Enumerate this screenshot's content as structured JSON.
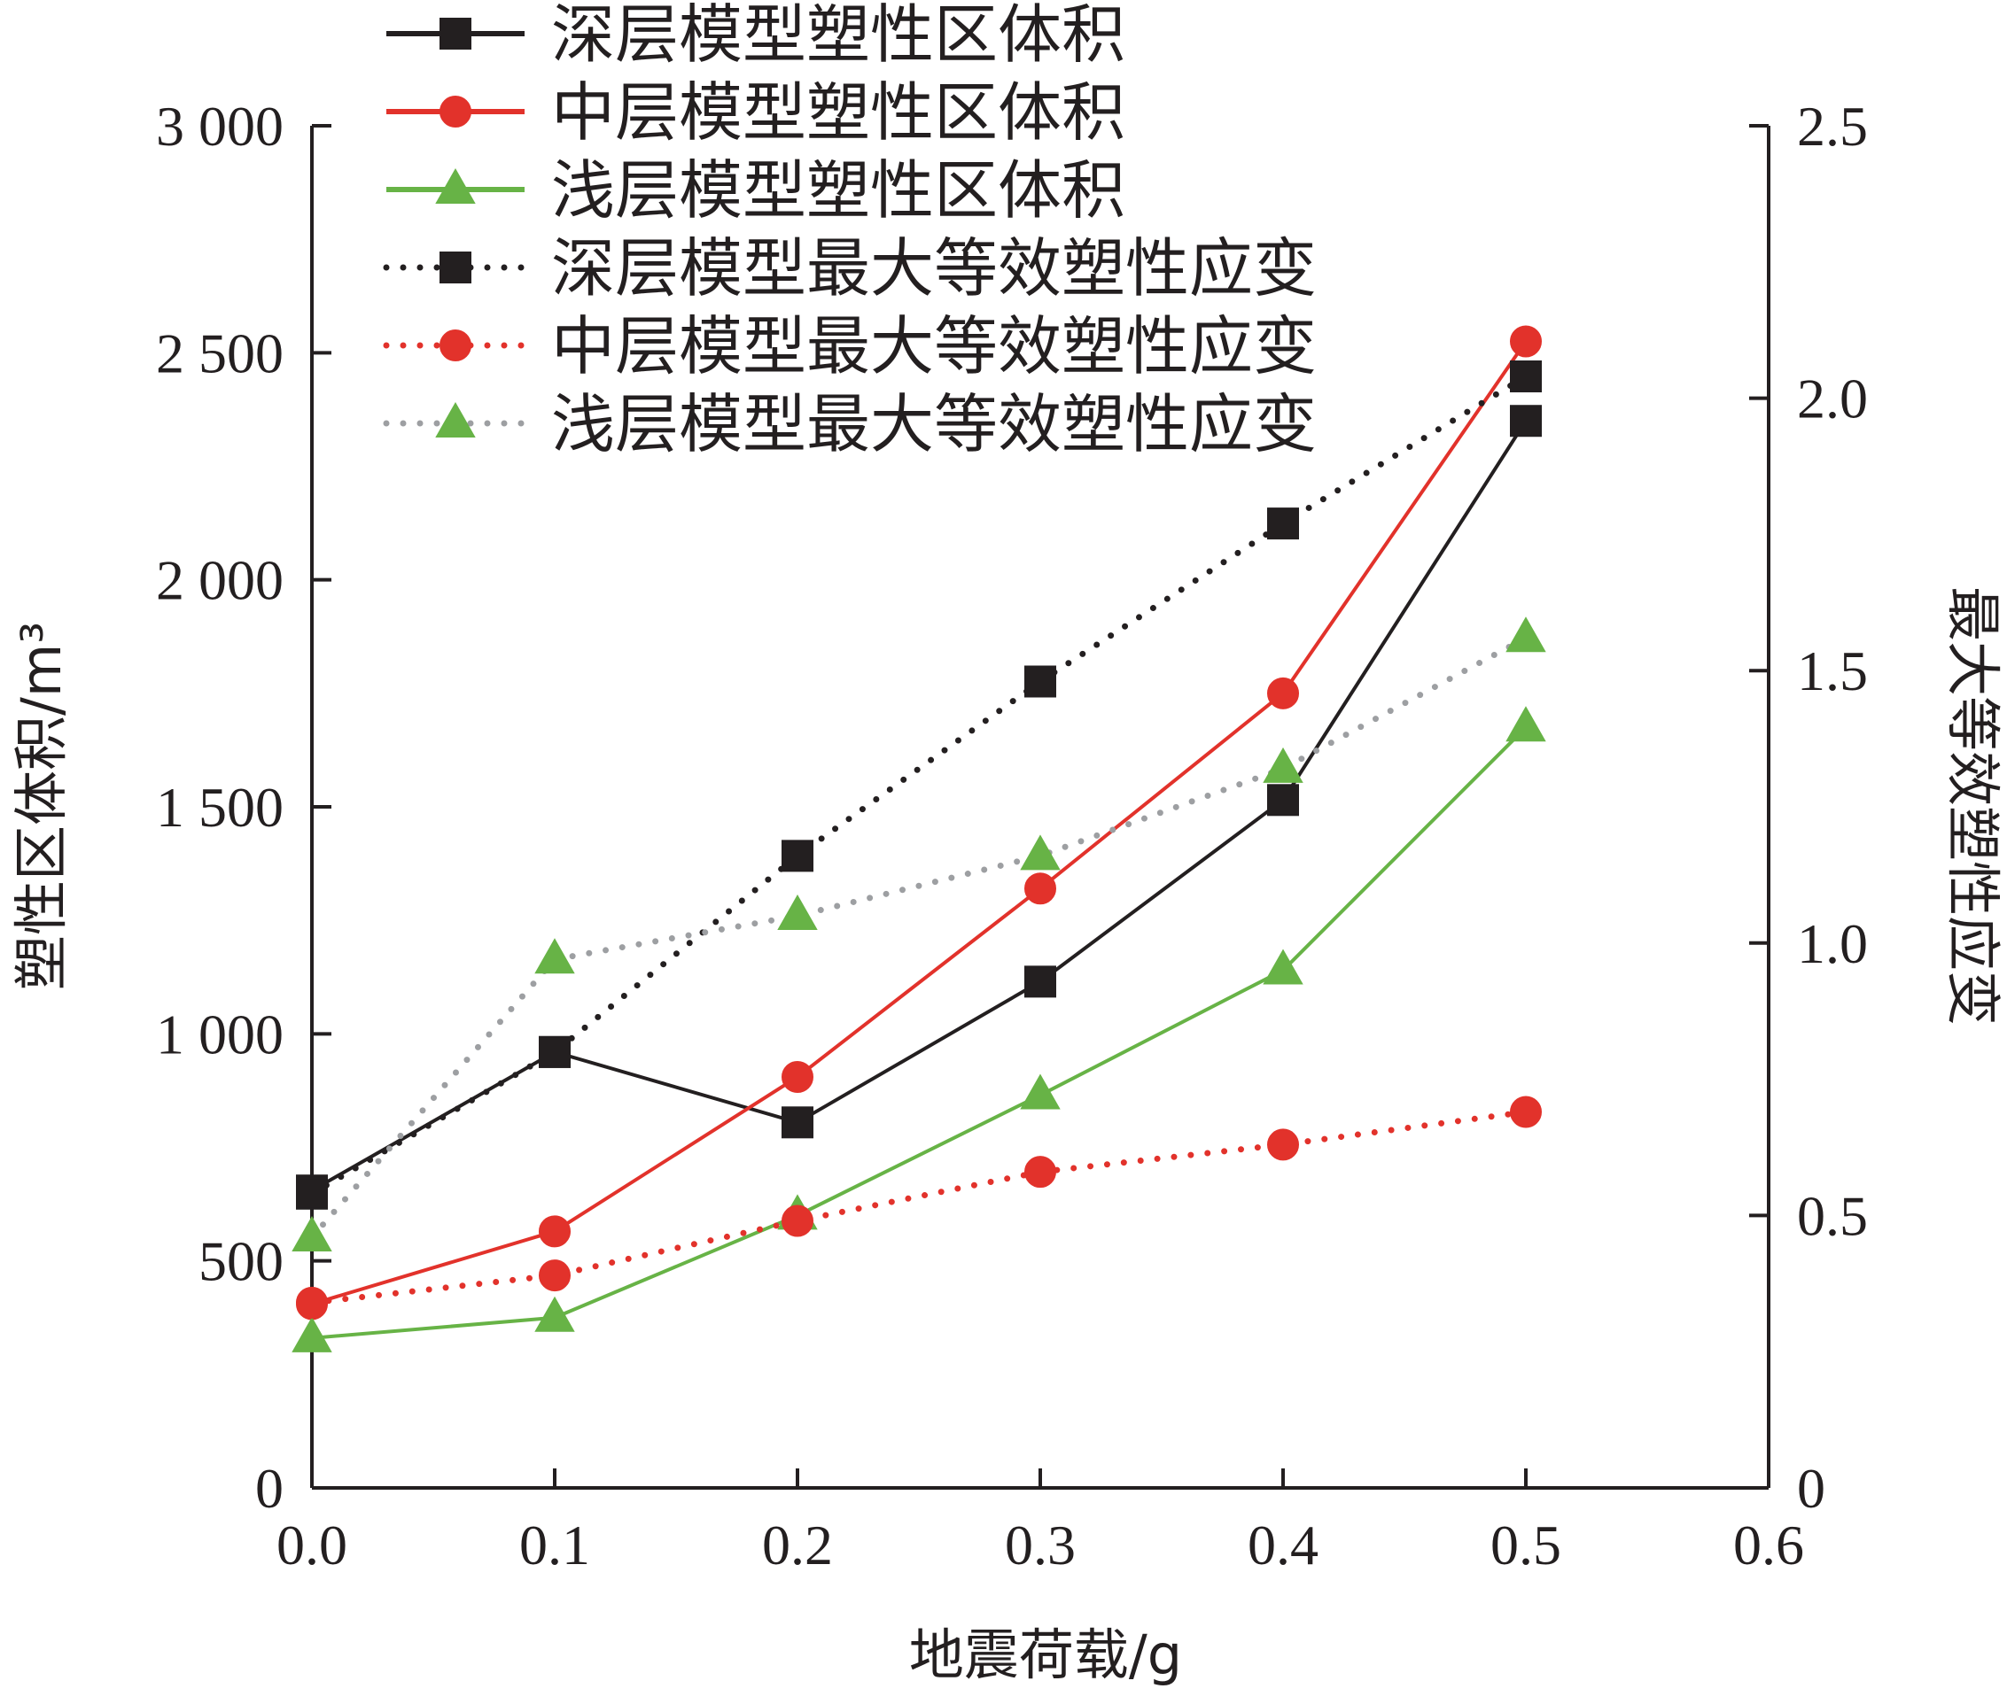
{
  "chart_data": {
    "type": "line",
    "xlabel": "地震荷载/g",
    "ylabel": "塑性区体积/m³",
    "y2label": "最大等效塑性应变",
    "xlim": [
      0.0,
      0.6
    ],
    "ylim": [
      0,
      3000
    ],
    "y2lim": [
      0,
      2.5
    ],
    "xticks": [
      "0.0",
      "0.1",
      "0.2",
      "0.3",
      "0.4",
      "0.5",
      "0.6"
    ],
    "yticks": [
      "0",
      "500",
      "1 000",
      "1 500",
      "2 000",
      "2 500",
      "3 000"
    ],
    "y2ticks": [
      "0",
      "0.5",
      "1.0",
      "1.5",
      "2.0",
      "2.5"
    ],
    "grid": false,
    "legend_position": "top",
    "colors": {
      "black": "#231f20",
      "red": "#e2322b",
      "green": "#67b346",
      "gray": "#9d9fa2"
    },
    "series": [
      {
        "name": "深层模型塑性区体积",
        "axis": "left",
        "style": "solid",
        "marker": "square",
        "color": "#231f20",
        "x": [
          0.0,
          0.1,
          0.2,
          0.3,
          0.4,
          0.5
        ],
        "values": [
          655,
          960,
          805,
          1115,
          1515,
          2350
        ]
      },
      {
        "name": "中层模型塑性区体积",
        "axis": "left",
        "style": "solid",
        "marker": "circle",
        "color": "#e2322b",
        "x": [
          0.0,
          0.1,
          0.2,
          0.3,
          0.4,
          0.5
        ],
        "values": [
          405,
          565,
          905,
          1320,
          1750,
          2525
        ]
      },
      {
        "name": "浅层模型塑性区体积",
        "axis": "left",
        "style": "solid",
        "marker": "triangle",
        "color": "#67b346",
        "x": [
          0.0,
          0.1,
          0.2,
          0.3,
          0.4,
          0.5
        ],
        "values": [
          330,
          375,
          600,
          865,
          1140,
          1675
        ]
      },
      {
        "name": "深层模型最大等效塑性应变",
        "axis": "right",
        "style": "dotted",
        "marker": "square",
        "color": "#231f20",
        "x": [
          0.0,
          0.1,
          0.2,
          0.3,
          0.4,
          0.5
        ],
        "values": [
          0.54,
          0.8,
          1.16,
          1.48,
          1.77,
          2.04
        ]
      },
      {
        "name": "中层模型最大等效塑性应变",
        "axis": "right",
        "style": "dotted",
        "marker": "circle",
        "color": "#e2322b",
        "x": [
          0.0,
          0.1,
          0.2,
          0.3,
          0.4,
          0.5
        ],
        "values": [
          0.34,
          0.39,
          0.49,
          0.58,
          0.63,
          0.69
        ]
      },
      {
        "name": "浅层模型最大等效塑性应变",
        "axis": "right",
        "style": "dotted",
        "marker": "triangle",
        "color": "#67b346",
        "line_color": "#9d9fa2",
        "x": [
          0.0,
          0.1,
          0.2,
          0.3,
          0.4,
          0.5
        ],
        "values": [
          0.46,
          0.97,
          1.05,
          1.16,
          1.32,
          1.56
        ]
      }
    ]
  }
}
